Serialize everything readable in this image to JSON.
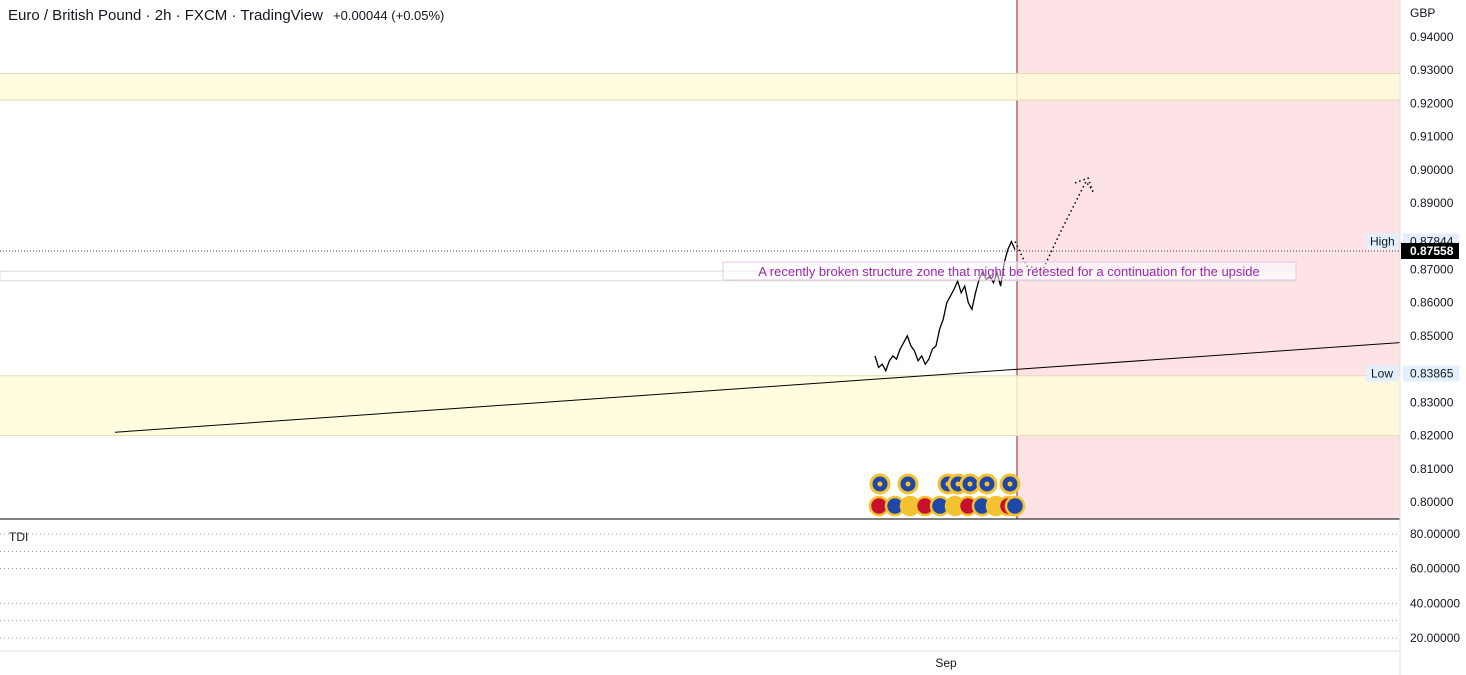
{
  "header": {
    "symbol": "Euro / British Pound",
    "interval": "2h",
    "source": "FXCM",
    "platform": "TradingView",
    "change": "+0.00044 (+0.05%)"
  },
  "chart_data": {
    "type": "line",
    "currency": "GBP",
    "ylim": [
      0.7955,
      0.9455
    ],
    "yticks": [
      "0.94000",
      "0.93000",
      "0.92000",
      "0.91000",
      "0.90000",
      "0.89000",
      "0.87000",
      "0.86000",
      "0.85000",
      "0.83000",
      "0.82000",
      "0.81000",
      "0.80000"
    ],
    "xticks": [
      "Sep"
    ],
    "last_price": "0.87558",
    "high": {
      "label": "High",
      "value": "0.87844"
    },
    "low": {
      "label": "Low",
      "value": "0.83865"
    },
    "zones": [
      {
        "from": 0.921,
        "to": 0.929,
        "color": "#fffbdb"
      },
      {
        "from": 0.82,
        "to": 0.838,
        "color": "#fffbdb"
      }
    ],
    "annotation": "A recently broken structure zone that might be retested for a continuation for the upside",
    "annotation_color": "#9c27b0",
    "price_series": [
      0.844,
      0.8405,
      0.8415,
      0.8395,
      0.8425,
      0.844,
      0.843,
      0.846,
      0.848,
      0.85,
      0.847,
      0.8455,
      0.8425,
      0.844,
      0.8415,
      0.843,
      0.846,
      0.847,
      0.852,
      0.855,
      0.86,
      0.862,
      0.864,
      0.8665,
      0.863,
      0.865,
      0.86,
      0.858,
      0.863,
      0.867,
      0.8695,
      0.867,
      0.868,
      0.866,
      0.869,
      0.865,
      0.872,
      0.876,
      0.8784,
      0.876
    ],
    "projection": [
      0.8784,
      0.871,
      0.87,
      0.881,
      0.8965,
      0.8935
    ],
    "trendline": [
      0.821,
      0.848
    ],
    "indicator": {
      "name": "TDI",
      "yticks": [
        "80.00000",
        "60.00000",
        "40.00000",
        "20.00000"
      ],
      "ylim": [
        10,
        85
      ]
    },
    "colors": {
      "forecast_zone": "#fde3e6",
      "zone_border": "#e4ddb0",
      "price_line": "#000000",
      "axis_text": "#131722",
      "high_low_bg": "#e3effd",
      "last_price_bg": "#000000"
    }
  }
}
